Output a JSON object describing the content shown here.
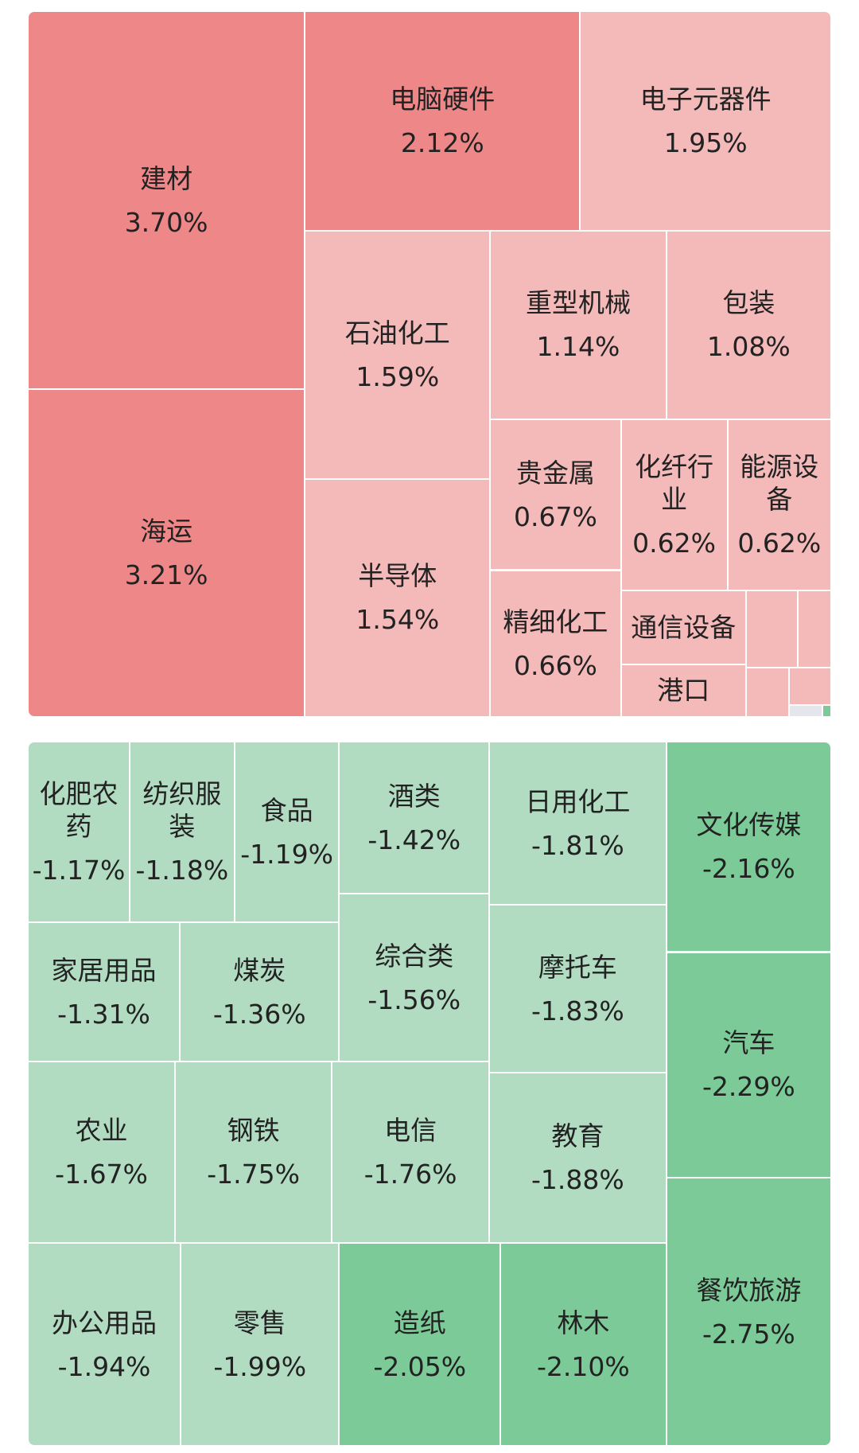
{
  "chart_data": {
    "type": "treemap",
    "categories": [
      "建材",
      "海运",
      "电脑硬件",
      "电子元器件",
      "石油化工",
      "半导体",
      "重型机械",
      "包装",
      "贵金属",
      "精细化工",
      "化纤行业",
      "能源设备",
      "通信设备",
      "港口",
      "化肥农药",
      "纺织服装",
      "食品",
      "酒类",
      "日用化工",
      "文化传媒",
      "家居用品",
      "煤炭",
      "综合类",
      "摩托车",
      "汽车",
      "农业",
      "钢铁",
      "电信",
      "教育",
      "办公用品",
      "零售",
      "造纸",
      "林木",
      "餐饮旅游"
    ],
    "values": [
      3.7,
      3.21,
      2.12,
      1.95,
      1.59,
      1.54,
      1.14,
      1.08,
      0.67,
      0.66,
      0.62,
      0.62,
      null,
      null,
      -1.17,
      -1.18,
      -1.19,
      -1.42,
      -1.81,
      -2.16,
      -1.31,
      -1.36,
      -1.56,
      -1.83,
      -2.29,
      -1.67,
      -1.75,
      -1.76,
      -1.88,
      -1.94,
      -1.99,
      -2.05,
      -2.1,
      -2.75
    ],
    "value_labels": [
      "3.70%",
      "3.21%",
      "2.12%",
      "1.95%",
      "1.59%",
      "1.54%",
      "1.14%",
      "1.08%",
      "0.67%",
      "0.66%",
      "0.62%",
      "0.62%",
      null,
      null,
      "-1.17%",
      "-1.18%",
      "-1.19%",
      "-1.42%",
      "-1.81%",
      "-2.16%",
      "-1.31%",
      "-1.36%",
      "-1.56%",
      "-1.83%",
      "-2.29%",
      "-1.67%",
      "-1.75%",
      "-1.76%",
      "-1.88%",
      "-1.94%",
      "-1.99%",
      "-2.05%",
      "-2.10%",
      "-2.75%"
    ],
    "colors": [
      "#ee8788",
      "#ee8788",
      "#ee8788",
      "#f4b9b9",
      "#f4b9b9",
      "#f4b9b9",
      "#f4b9b9",
      "#f4b9b9",
      "#f4b9b9",
      "#f4b9b9",
      "#f4b9b9",
      "#f4b9b9",
      "#f4b9b9",
      "#f4b9b9",
      "#b1dcc2",
      "#b1dcc2",
      "#b1dcc2",
      "#b1dcc2",
      "#b1dcc2",
      "#7bca97",
      "#b1dcc2",
      "#b1dcc2",
      "#b1dcc2",
      "#b1dcc2",
      "#7bca97",
      "#b1dcc2",
      "#b1dcc2",
      "#b1dcc2",
      "#b1dcc2",
      "#b1dcc2",
      "#b1dcc2",
      "#7bca97",
      "#7bca97",
      "#7bca97"
    ]
  }
}
